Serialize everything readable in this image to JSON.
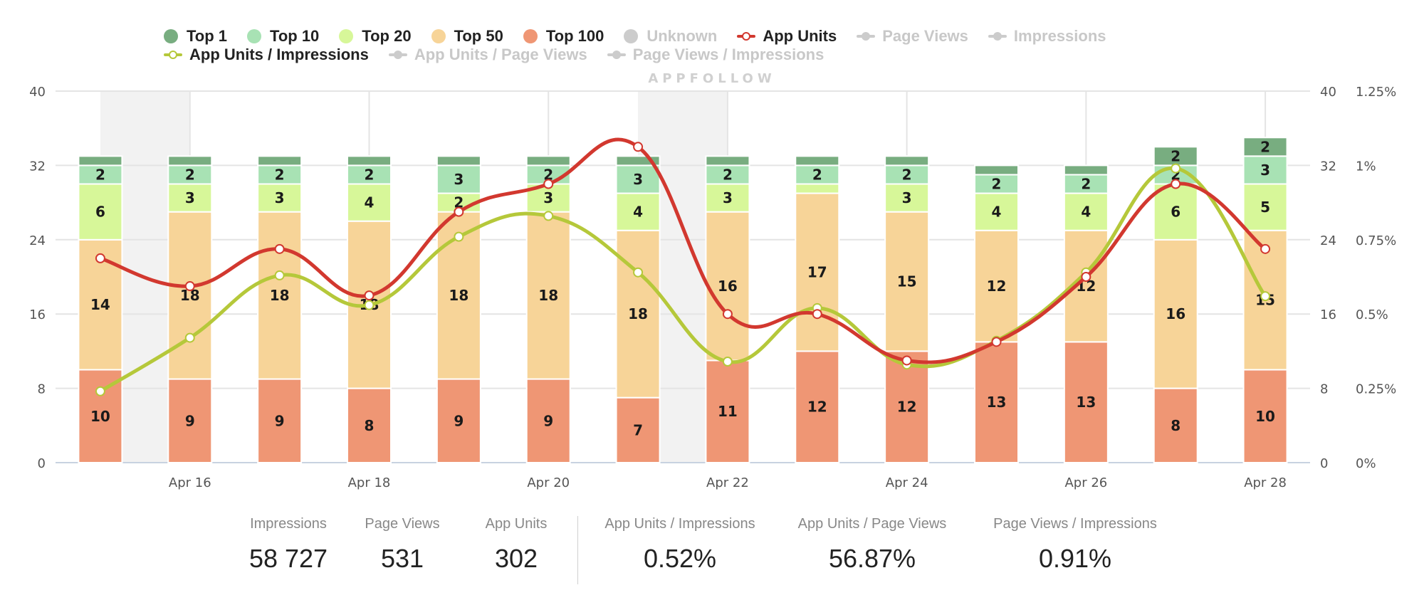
{
  "legend": {
    "row1": [
      {
        "label": "Top 1",
        "kind": "dot",
        "color": "#78ad80",
        "active": true
      },
      {
        "label": "Top 10",
        "kind": "dot",
        "color": "#a8e2b4",
        "active": true
      },
      {
        "label": "Top 20",
        "kind": "dot",
        "color": "#d7f799",
        "active": true
      },
      {
        "label": "Top 50",
        "kind": "dot",
        "color": "#f7d498",
        "active": true
      },
      {
        "label": "Top 100",
        "kind": "dot",
        "color": "#ef9674",
        "active": true
      },
      {
        "label": "Unknown",
        "kind": "dot",
        "color": "#cccccc",
        "active": false
      },
      {
        "label": "App Units",
        "kind": "line",
        "color": "#d2382f",
        "active": true
      },
      {
        "label": "Page Views",
        "kind": "line",
        "color": "#cccccc",
        "active": false
      },
      {
        "label": "Impressions",
        "kind": "line",
        "color": "#cccccc",
        "active": false
      }
    ],
    "row2": [
      {
        "label": "App Units / Impressions",
        "kind": "line",
        "color": "#b5c83a",
        "active": true
      },
      {
        "label": "App Units / Page Views",
        "kind": "line",
        "color": "#cccccc",
        "active": false
      },
      {
        "label": "Page Views / Impressions",
        "kind": "line",
        "color": "#cccccc",
        "active": false
      }
    ]
  },
  "watermark": "APPFOLLOW",
  "chart_data": {
    "type": "bar",
    "stacked": true,
    "categories": [
      "Apr 15",
      "Apr 16",
      "Apr 17",
      "Apr 18",
      "Apr 19",
      "Apr 20",
      "Apr 21",
      "Apr 22",
      "Apr 23",
      "Apr 24",
      "Apr 25",
      "Apr 26",
      "Apr 27",
      "Apr 28"
    ],
    "x_tick_labels": [
      "Apr 16",
      "Apr 18",
      "Apr 20",
      "Apr 22",
      "Apr 24",
      "Apr 26",
      "Apr 28"
    ],
    "weekend_bands": [
      [
        "Apr 15",
        "Apr 16"
      ],
      [
        "Apr 21",
        "Apr 22"
      ]
    ],
    "series": [
      {
        "name": "Top 100",
        "color": "#ef9674",
        "values": [
          10,
          9,
          9,
          8,
          9,
          9,
          7,
          11,
          12,
          12,
          13,
          13,
          8,
          10
        ]
      },
      {
        "name": "Top 50",
        "color": "#f7d498",
        "values": [
          14,
          18,
          18,
          18,
          18,
          18,
          18,
          16,
          17,
          15,
          12,
          12,
          16,
          15
        ]
      },
      {
        "name": "Top 20",
        "color": "#d7f799",
        "values": [
          6,
          3,
          3,
          4,
          2,
          3,
          4,
          3,
          1,
          3,
          4,
          4,
          6,
          5
        ]
      },
      {
        "name": "Top 10",
        "color": "#a8e2b4",
        "values": [
          2,
          2,
          2,
          2,
          3,
          2,
          3,
          2,
          2,
          2,
          2,
          2,
          2,
          3
        ]
      },
      {
        "name": "Top 1",
        "color": "#78ad80",
        "values": [
          1,
          1,
          1,
          1,
          1,
          1,
          1,
          1,
          1,
          1,
          1,
          1,
          2,
          2
        ]
      }
    ],
    "lines": [
      {
        "name": "App Units",
        "color": "#d2382f",
        "axis": "left",
        "values": [
          22,
          19,
          23,
          18,
          27,
          30,
          34,
          16,
          16,
          11,
          13,
          20,
          30,
          23
        ]
      },
      {
        "name": "App Units / Impressions",
        "color": "#b5c83a",
        "axis": "right",
        "unit": "%",
        "values": [
          0.24,
          0.42,
          0.63,
          0.53,
          0.76,
          0.83,
          0.64,
          0.34,
          0.52,
          0.33,
          0.41,
          0.64,
          0.99,
          0.56
        ]
      }
    ],
    "ylim": [
      0,
      40
    ],
    "y_ticks": [
      0,
      8,
      16,
      24,
      32,
      40
    ],
    "y2lim": [
      0,
      1.25
    ],
    "y2_ticks": [
      "0%",
      "0.25%",
      "0.5%",
      "0.75%",
      "1%",
      "1.25%"
    ],
    "grid": true,
    "legend_position": "top"
  },
  "summary": [
    {
      "label": "Impressions",
      "value": "58 727"
    },
    {
      "label": "Page Views",
      "value": "531"
    },
    {
      "label": "App Units",
      "value": "302"
    },
    {
      "label": "App Units / Impressions",
      "value": "0.52%"
    },
    {
      "label": "App Units / Page Views",
      "value": "56.87%"
    },
    {
      "label": "Page Views / Impressions",
      "value": "0.91%"
    }
  ]
}
